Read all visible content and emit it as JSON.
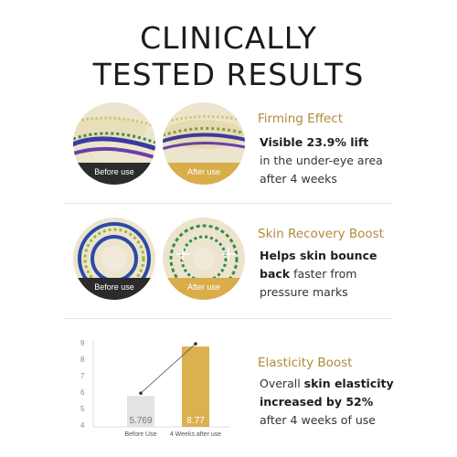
{
  "title": {
    "line1": "CLINICALLY",
    "line2": "TESTED RESULTS"
  },
  "sections": [
    {
      "heading": "Firming Effect",
      "before_label": "Before use",
      "after_label": "After use",
      "body": {
        "bold": "Visible 23.9% lift",
        "rest1": "in the under-eye area",
        "rest2": "after 4 weeks"
      }
    },
    {
      "heading": "Skin Recovery Boost",
      "before_label": "Before use",
      "after_label": "After use",
      "body": {
        "bold1": "Helps skin bounce",
        "bold2": "back",
        "rest1": " faster from",
        "rest2": "pressure marks"
      }
    },
    {
      "heading": "Elasticity Boost",
      "body": {
        "pre": "Overall ",
        "bold1": "skin elasticity",
        "bold2": "increased by 52%",
        "rest": "after 4 weeks of use"
      }
    }
  ],
  "chart_data": {
    "type": "bar",
    "categories": [
      "Before Use",
      "4 Weeks after use"
    ],
    "values": [
      5.769,
      8.77
    ],
    "value_labels": [
      "5.769",
      "8.77"
    ],
    "y_ticks": [
      "4",
      "5",
      "6",
      "7",
      "8",
      "9"
    ],
    "ylim": [
      4,
      9
    ],
    "colors": [
      "#e3e3e3",
      "#dcb04e"
    ]
  },
  "colors": {
    "accent": "#b08a3a",
    "after_bar": "#dcb04e",
    "before_bar": "#e3e3e3"
  }
}
